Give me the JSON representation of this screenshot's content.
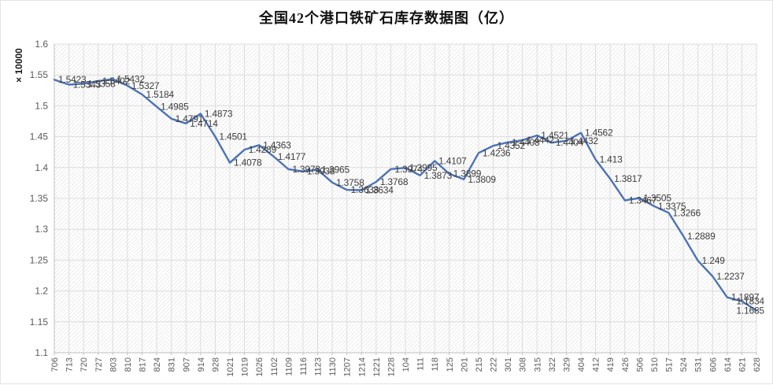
{
  "title": "全国42个港口铁矿石库存数据图（亿）",
  "chart_data": {
    "type": "line",
    "title": "全国42个港口铁矿石库存数据图（亿）",
    "ylabel": "× 10000",
    "xlabel": "",
    "ylim": [
      1.1,
      1.6
    ],
    "yticks": [
      "1.1",
      "1.15",
      "1.2",
      "1.25",
      "1.3",
      "1.35",
      "1.4",
      "1.45",
      "1.5",
      "1.55",
      "1.6"
    ],
    "grid": "both",
    "legend_position": "none",
    "line_color": "#4a73b8",
    "data_label_color": "#3d3d3d",
    "axis_text_color": "#595959",
    "categories": [
      "706",
      "713",
      "720",
      "727",
      "803",
      "810",
      "817",
      "824",
      "831",
      "907",
      "914",
      "928",
      "1021",
      "1019",
      "1026",
      "1102",
      "1109",
      "1116",
      "1123",
      "1130",
      "1207",
      "1214",
      "1221",
      "1228",
      "104",
      "111",
      "118",
      "125",
      "201",
      "215",
      "222",
      "301",
      "308",
      "315",
      "322",
      "329",
      "404",
      "412",
      "419",
      "426",
      "506",
      "510",
      "517",
      "524",
      "531",
      "606",
      "614",
      "621",
      "628"
    ],
    "values": [
      1.5423,
      1.5343,
      1.5358,
      1.5402,
      1.5432,
      1.5327,
      1.5184,
      1.4985,
      1.4791,
      1.4714,
      1.4873,
      1.4501,
      1.4078,
      1.4289,
      1.4363,
      1.4177,
      1.3973,
      1.3938,
      1.3965,
      1.3758,
      1.3638,
      1.3634,
      1.3768,
      1.3974,
      1.3995,
      1.3873,
      1.4107,
      1.3899,
      1.3809,
      1.4236,
      1.4352,
      1.4408,
      1.4442,
      1.4521,
      1.4404,
      1.4432,
      1.4562,
      1.413,
      1.3817,
      1.3467,
      1.3505,
      1.3375,
      1.3266,
      1.2889,
      1.249,
      1.2237,
      1.1897,
      1.1834,
      1.1685
    ],
    "point_labels": [
      "1.5423",
      "1.5343",
      "1.5358",
      "1.5402",
      "1.5432",
      "1.5327",
      "1.5184",
      "1.4985",
      "1.4791",
      "1.4714",
      "1.4873",
      "1.4501",
      "1.4078",
      "1.4289",
      "1.4363",
      "1.4177",
      "1.3973",
      "1.3938",
      "1.3965",
      "1.3758",
      "1.3638",
      "1.3634",
      "1.3768",
      "1.3974",
      "1.3995",
      "1.3873",
      "1.4107",
      "1.3899",
      "1.3809",
      "1.4236",
      "1.4352",
      "1.4408",
      "1.4442",
      "1.4521",
      "1.4404",
      "1.4432",
      "1.4562",
      "1.413",
      "1.3817",
      "1.3467",
      "1.3505",
      "1.3375",
      "1.3266",
      "1.2889",
      "1.249",
      "1.2237",
      "1.1897",
      "1.1834",
      "1.1685"
    ]
  }
}
